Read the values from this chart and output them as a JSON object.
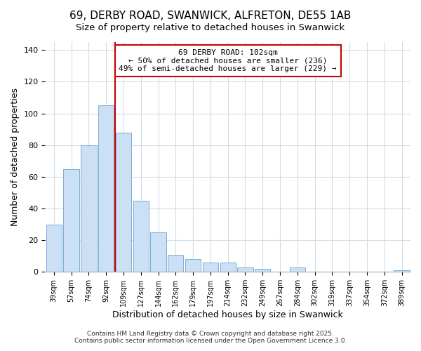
{
  "title": "69, DERBY ROAD, SWANWICK, ALFRETON, DE55 1AB",
  "subtitle": "Size of property relative to detached houses in Swanwick",
  "xlabel": "Distribution of detached houses by size in Swanwick",
  "ylabel": "Number of detached properties",
  "categories": [
    "39sqm",
    "57sqm",
    "74sqm",
    "92sqm",
    "109sqm",
    "127sqm",
    "144sqm",
    "162sqm",
    "179sqm",
    "197sqm",
    "214sqm",
    "232sqm",
    "249sqm",
    "267sqm",
    "284sqm",
    "302sqm",
    "319sqm",
    "337sqm",
    "354sqm",
    "372sqm",
    "389sqm"
  ],
  "values": [
    30,
    65,
    80,
    105,
    88,
    45,
    25,
    11,
    8,
    6,
    6,
    3,
    2,
    0,
    3,
    0,
    0,
    0,
    0,
    0,
    1
  ],
  "bar_color": "#cce0f5",
  "bar_edge_color": "#7aafd4",
  "red_line_x": 4,
  "ylim": [
    0,
    145
  ],
  "yticks": [
    0,
    20,
    40,
    60,
    80,
    100,
    120,
    140
  ],
  "annotation_title": "69 DERBY ROAD: 102sqm",
  "annotation_line1": "← 50% of detached houses are smaller (236)",
  "annotation_line2": "49% of semi-detached houses are larger (229) →",
  "annotation_box_color": "#ffffff",
  "annotation_border_color": "#cc0000",
  "footer_line1": "Contains HM Land Registry data © Crown copyright and database right 2025.",
  "footer_line2": "Contains public sector information licensed under the Open Government Licence 3.0.",
  "bg_color": "#ffffff",
  "plot_bg_color": "#ffffff",
  "grid_color": "#d0dce8",
  "title_fontsize": 11,
  "subtitle_fontsize": 9.5,
  "ylabel_fontsize": 9,
  "xlabel_fontsize": 9
}
